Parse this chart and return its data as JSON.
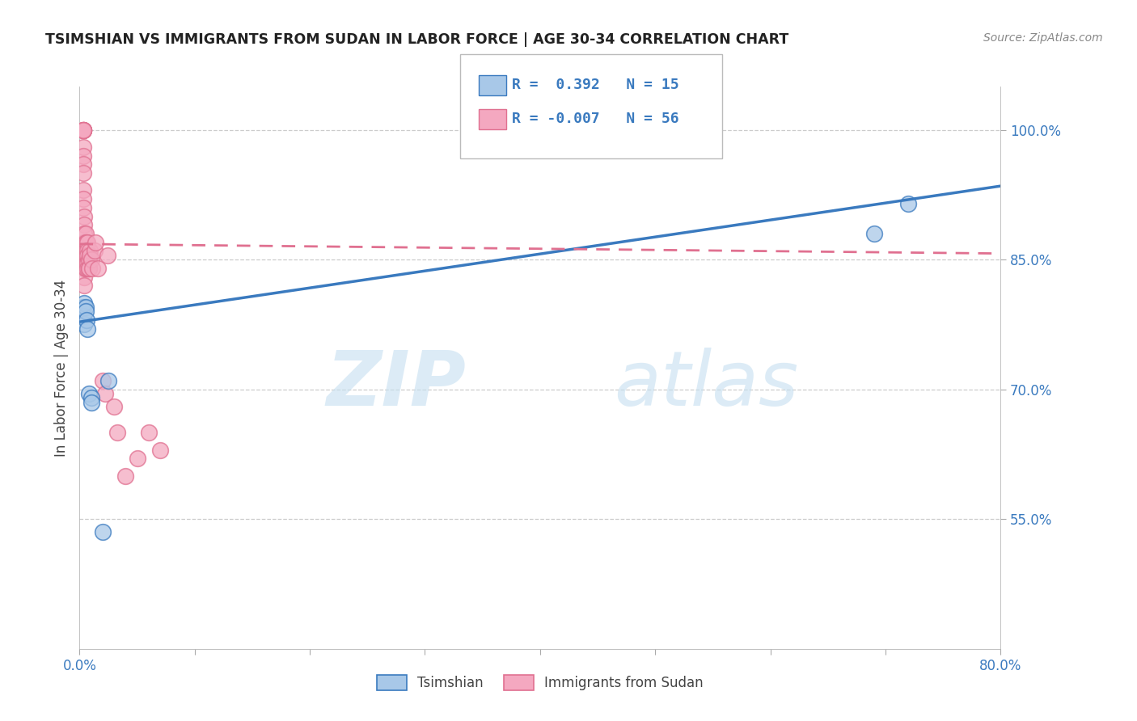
{
  "title": "TSIMSHIAN VS IMMIGRANTS FROM SUDAN IN LABOR FORCE | AGE 30-34 CORRELATION CHART",
  "source": "Source: ZipAtlas.com",
  "ylabel": "In Labor Force | Age 30-34",
  "xlim": [
    0.0,
    0.8
  ],
  "ylim": [
    0.4,
    1.05
  ],
  "yticks": [
    0.55,
    0.7,
    0.85,
    1.0
  ],
  "ytick_labels": [
    "55.0%",
    "70.0%",
    "85.0%",
    "100.0%"
  ],
  "xticks": [
    0.0,
    0.1,
    0.2,
    0.3,
    0.4,
    0.5,
    0.6,
    0.7,
    0.8
  ],
  "xtick_labels": [
    "0.0%",
    "",
    "",
    "",
    "",
    "",
    "",
    "",
    "80.0%"
  ],
  "blue_R": 0.392,
  "blue_N": 15,
  "pink_R": -0.007,
  "pink_N": 56,
  "blue_color": "#a8c8e8",
  "pink_color": "#f4a8c0",
  "blue_line_color": "#3a7abf",
  "pink_line_color": "#e07090",
  "watermark_zip": "ZIP",
  "watermark_atlas": "atlas",
  "blue_scatter_x": [
    0.003,
    0.003,
    0.004,
    0.004,
    0.005,
    0.005,
    0.006,
    0.007,
    0.008,
    0.01,
    0.01,
    0.02,
    0.025,
    0.69,
    0.72
  ],
  "blue_scatter_y": [
    0.795,
    0.785,
    0.8,
    0.775,
    0.795,
    0.79,
    0.78,
    0.77,
    0.695,
    0.69,
    0.685,
    0.535,
    0.71,
    0.88,
    0.915
  ],
  "pink_scatter_x": [
    0.003,
    0.003,
    0.003,
    0.003,
    0.003,
    0.003,
    0.003,
    0.003,
    0.003,
    0.003,
    0.003,
    0.003,
    0.003,
    0.004,
    0.004,
    0.004,
    0.004,
    0.004,
    0.004,
    0.004,
    0.004,
    0.005,
    0.005,
    0.005,
    0.005,
    0.005,
    0.005,
    0.005,
    0.006,
    0.006,
    0.006,
    0.006,
    0.007,
    0.007,
    0.007,
    0.007,
    0.007,
    0.008,
    0.008,
    0.008,
    0.009,
    0.009,
    0.01,
    0.011,
    0.013,
    0.014,
    0.016,
    0.02,
    0.022,
    0.024,
    0.03,
    0.033,
    0.04,
    0.05,
    0.06,
    0.07
  ],
  "pink_scatter_y": [
    1.0,
    1.0,
    1.0,
    1.0,
    1.0,
    1.0,
    0.98,
    0.97,
    0.96,
    0.95,
    0.93,
    0.92,
    0.91,
    0.9,
    0.89,
    0.88,
    0.87,
    0.86,
    0.84,
    0.83,
    0.82,
    0.88,
    0.87,
    0.86,
    0.855,
    0.845,
    0.84,
    0.84,
    0.87,
    0.86,
    0.855,
    0.845,
    0.87,
    0.86,
    0.855,
    0.845,
    0.84,
    0.85,
    0.84,
    0.84,
    0.86,
    0.855,
    0.85,
    0.84,
    0.86,
    0.87,
    0.84,
    0.71,
    0.695,
    0.855,
    0.68,
    0.65,
    0.6,
    0.62,
    0.65,
    0.63
  ],
  "blue_line_x0": 0.0,
  "blue_line_y0": 0.778,
  "blue_line_x1": 0.8,
  "blue_line_y1": 0.935,
  "pink_line_x0": 0.0,
  "pink_line_y0": 0.868,
  "pink_line_x1": 0.8,
  "pink_line_y1": 0.857
}
